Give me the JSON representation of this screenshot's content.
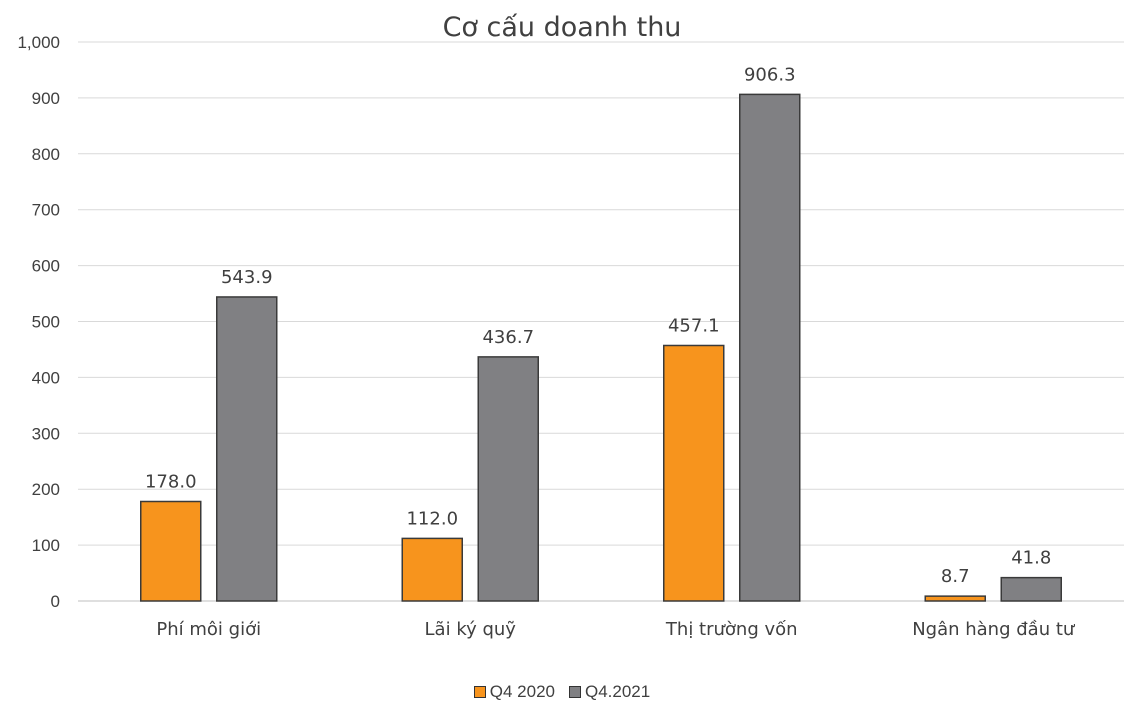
{
  "chart_data": {
    "type": "bar",
    "title": "Cơ cấu doanh thu",
    "xlabel": "",
    "ylabel": "",
    "ylim": [
      0,
      1000
    ],
    "yticks": [
      "0",
      "100",
      "200",
      "300",
      "400",
      "500",
      "600",
      "700",
      "800",
      "900",
      "1,000"
    ],
    "categories": [
      "Phí môi giới",
      "Lãi ký quỹ",
      "Thị trường vốn",
      "Ngân hàng đầu tư"
    ],
    "series": [
      {
        "name": "Q4 2020",
        "color": "#F7941D",
        "values": [
          178.0,
          112.0,
          457.1,
          8.7
        ],
        "labels": [
          "178.0",
          "112.0",
          "457.1",
          "8.7"
        ]
      },
      {
        "name": "Q4.2021",
        "color": "#808083",
        "values": [
          543.9,
          436.7,
          906.3,
          41.8
        ],
        "labels": [
          "543.9",
          "436.7",
          "906.3",
          "41.8"
        ]
      }
    ],
    "grid": true,
    "legend_position": "bottom"
  }
}
